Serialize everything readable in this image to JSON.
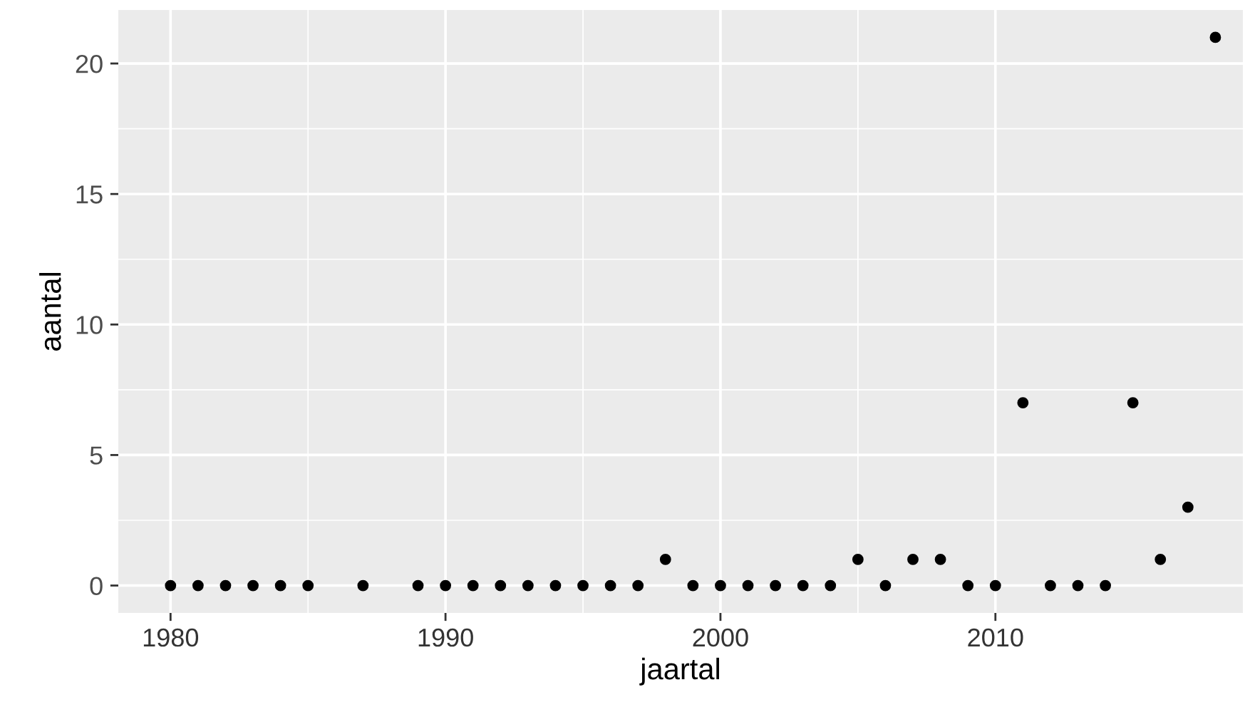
{
  "chart_data": {
    "type": "scatter",
    "xlabel": "jaartal",
    "ylabel": "aantal",
    "x": [
      1980,
      1981,
      1982,
      1983,
      1984,
      1985,
      1987,
      1989,
      1990,
      1991,
      1992,
      1993,
      1994,
      1995,
      1996,
      1997,
      1998,
      1999,
      2000,
      2001,
      2002,
      2003,
      2004,
      2005,
      2006,
      2007,
      2008,
      2009,
      2010,
      2011,
      2012,
      2013,
      2014,
      2015,
      2016,
      2017,
      2018
    ],
    "series": [
      {
        "color": "#000000",
        "values": [
          0,
          0,
          0,
          0,
          0,
          0,
          0,
          0,
          0,
          0,
          0,
          0,
          0,
          0,
          0,
          0,
          1,
          0,
          0,
          0,
          0,
          0,
          0,
          1,
          0,
          1,
          1,
          0,
          0,
          7,
          0,
          0,
          0,
          7,
          1,
          3,
          21
        ]
      }
    ],
    "xlim": [
      1978.1,
      2019.0
    ],
    "xticks": [
      1980,
      1990,
      2000,
      2010
    ],
    "ylim": [
      -1.05,
      22.05
    ],
    "yticks": [
      0,
      5,
      10,
      15,
      20
    ],
    "grid": true,
    "marker": "circle"
  }
}
